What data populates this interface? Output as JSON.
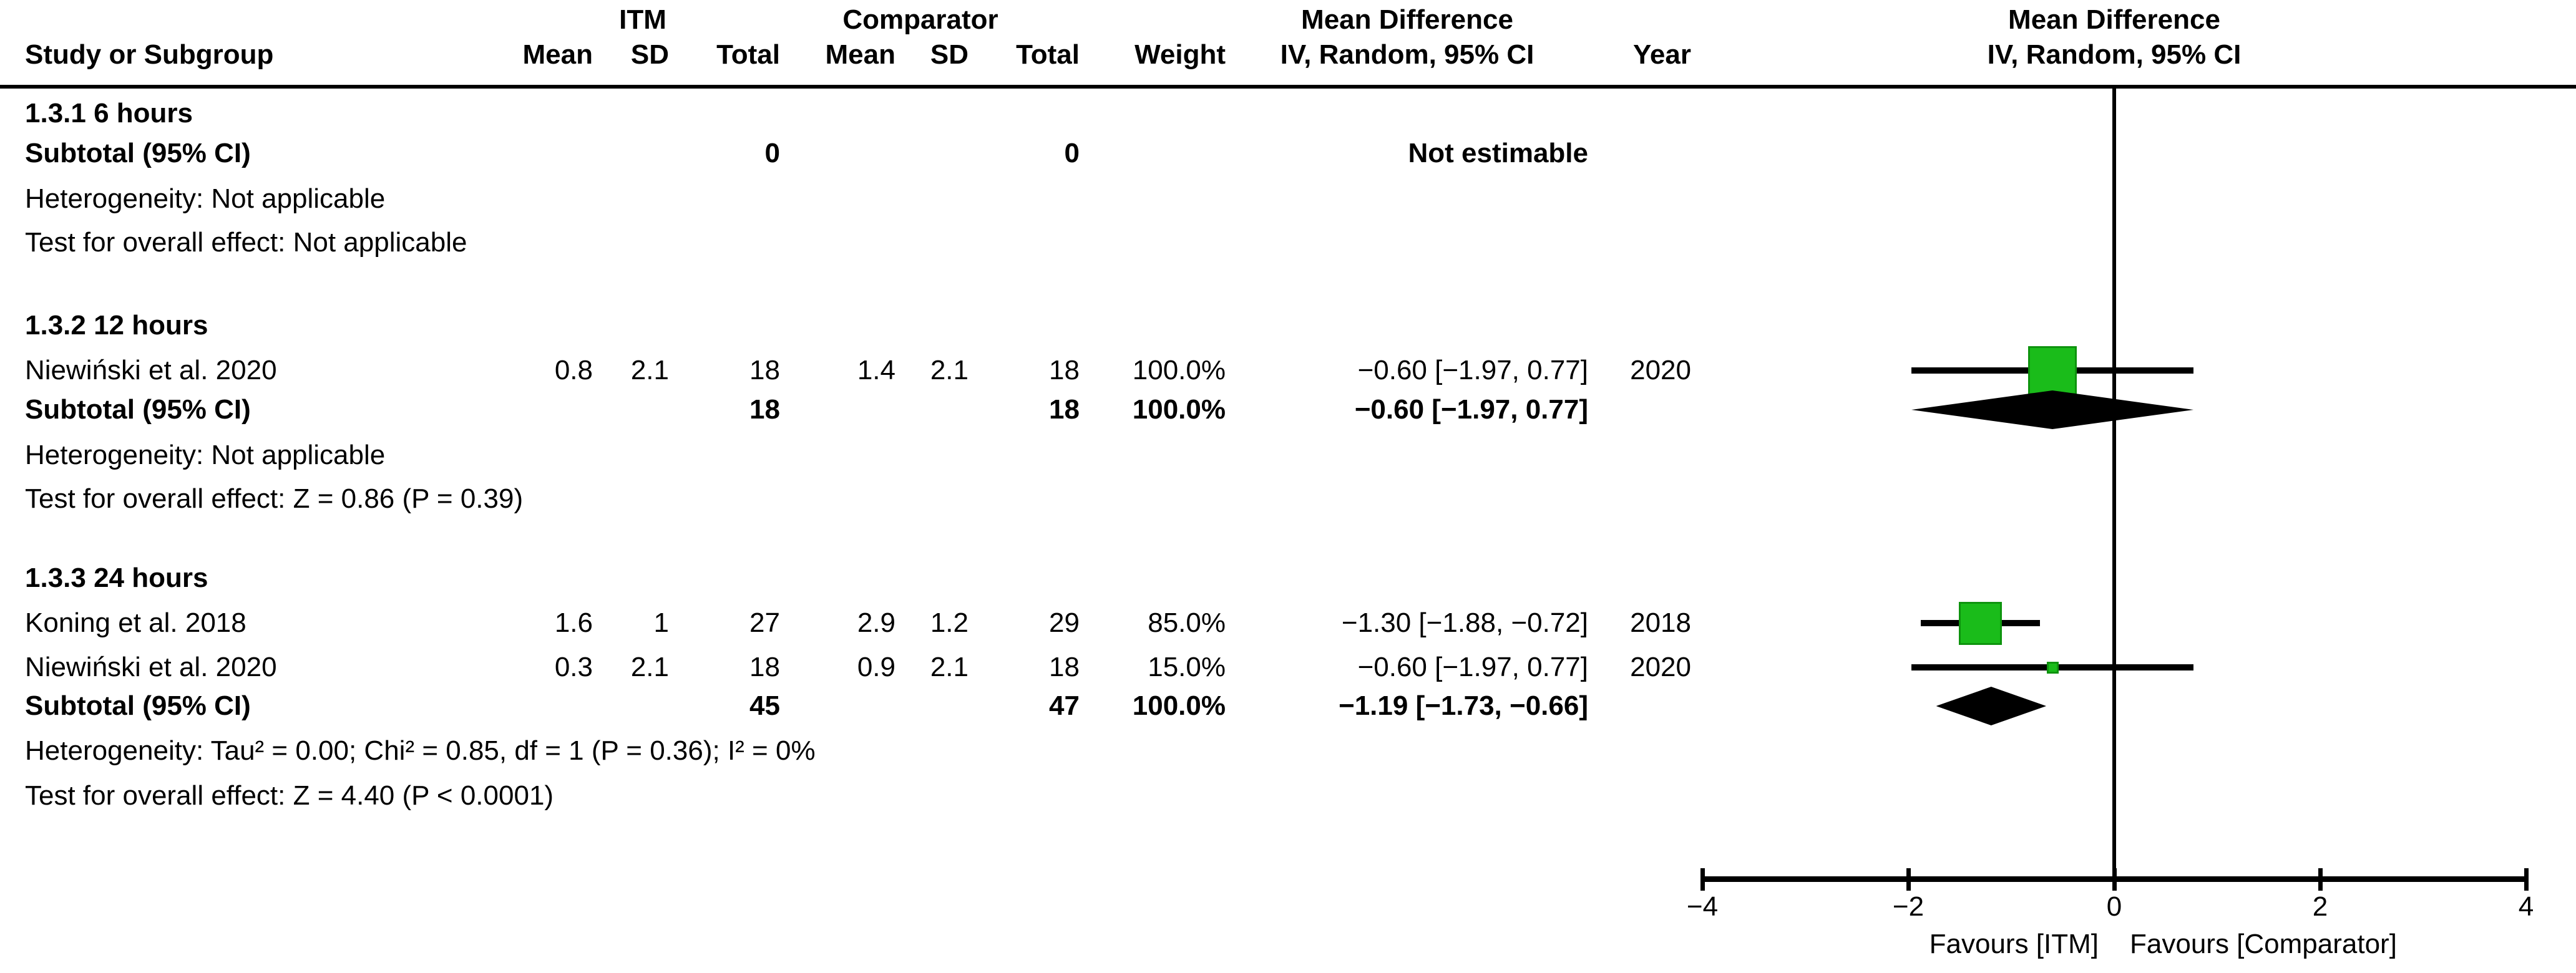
{
  "header": {
    "group_itm": "ITM",
    "group_comparator": "Comparator",
    "group_md_left": "Mean Difference",
    "group_md_right": "Mean Difference",
    "col_study": "Study or Subgroup",
    "col_mean_itm": "Mean",
    "col_sd_itm": "SD",
    "col_total_itm": "Total",
    "col_mean_comp": "Mean",
    "col_sd_comp": "SD",
    "col_total_comp": "Total",
    "col_weight": "Weight",
    "col_ci": "IV, Random, 95% CI",
    "col_year": "Year",
    "plot_sub": "IV, Random, 95% CI"
  },
  "sections": [
    {
      "title": "1.3.1 6 hours",
      "studies": [],
      "subtotal": {
        "label": "Subtotal (95% CI)",
        "itm_total": "0",
        "comp_total": "0",
        "weight": "",
        "ci": "Not estimable"
      },
      "heterogeneity": "Heterogeneity: Not applicable",
      "test": "Test for overall effect: Not applicable"
    },
    {
      "title": "1.3.2 12 hours",
      "studies": [
        {
          "name": "Niewiński et al. 2020",
          "itm_mean": "0.8",
          "itm_sd": "2.1",
          "itm_total": "18",
          "comp_mean": "1.4",
          "comp_sd": "2.1",
          "comp_total": "18",
          "weight": "100.0%",
          "ci": "−0.60 [−1.97, 0.77]",
          "year": "2020"
        }
      ],
      "subtotal": {
        "label": "Subtotal (95% CI)",
        "itm_total": "18",
        "comp_total": "18",
        "weight": "100.0%",
        "ci": "−0.60 [−1.97, 0.77]"
      },
      "heterogeneity": "Heterogeneity: Not applicable",
      "test": "Test for overall effect: Z = 0.86 (P = 0.39)"
    },
    {
      "title": "1.3.3 24 hours",
      "studies": [
        {
          "name": "Koning et al. 2018",
          "itm_mean": "1.6",
          "itm_sd": "1",
          "itm_total": "27",
          "comp_mean": "2.9",
          "comp_sd": "1.2",
          "comp_total": "29",
          "weight": "85.0%",
          "ci": "−1.30 [−1.88, −0.72]",
          "year": "2018"
        },
        {
          "name": "Niewiński et al. 2020",
          "itm_mean": "0.3",
          "itm_sd": "2.1",
          "itm_total": "18",
          "comp_mean": "0.9",
          "comp_sd": "2.1",
          "comp_total": "18",
          "weight": "15.0%",
          "ci": "−0.60 [−1.97, 0.77]",
          "year": "2020"
        }
      ],
      "subtotal": {
        "label": "Subtotal (95% CI)",
        "itm_total": "45",
        "comp_total": "47",
        "weight": "100.0%",
        "ci": "−1.19 [−1.73, −0.66]"
      },
      "heterogeneity": "Heterogeneity: Tau² = 0.00; Chi² = 0.85, df = 1 (P = 0.36); I² = 0%",
      "test": "Test for overall effect: Z = 4.40 (P < 0.0001)"
    }
  ],
  "axis": {
    "tick_labels": [
      "−4",
      "−2",
      "0",
      "2",
      "4"
    ],
    "favours_left": "Favours [ITM]",
    "favours_right": "Favours [Comparator]"
  },
  "colors": {
    "marker_green": "#1abc1a",
    "marker_green_border": "#0e930e",
    "line_black": "#000000"
  },
  "chart_data": {
    "type": "forest",
    "effect_measure": "Mean Difference, IV, Random, 95% CI",
    "title": "Mean Difference",
    "xlim": [
      -4,
      4
    ],
    "x_ticks": [
      -4,
      -2,
      0,
      2,
      4
    ],
    "zero_line": 0,
    "legend_left": "Favours [ITM]",
    "legend_right": "Favours [Comparator]",
    "rows": [
      {
        "section": "1.3.2 12 hours",
        "label": "Niewiński et al. 2020",
        "kind": "study",
        "est": -0.6,
        "lo": -1.97,
        "hi": 0.77,
        "weight_pct": 100.0,
        "year": 2020
      },
      {
        "section": "1.3.2 12 hours",
        "label": "Subtotal (95% CI)",
        "kind": "diamond",
        "est": -0.6,
        "lo": -1.97,
        "hi": 0.77
      },
      {
        "section": "1.3.3 24 hours",
        "label": "Koning et al. 2018",
        "kind": "study",
        "est": -1.3,
        "lo": -1.88,
        "hi": -0.72,
        "weight_pct": 85.0,
        "year": 2018
      },
      {
        "section": "1.3.3 24 hours",
        "label": "Niewiński et al. 2020",
        "kind": "study",
        "est": -0.6,
        "lo": -1.97,
        "hi": 0.77,
        "weight_pct": 15.0,
        "year": 2020
      },
      {
        "section": "1.3.3 24 hours",
        "label": "Subtotal (95% CI)",
        "kind": "diamond",
        "est": -1.19,
        "lo": -1.73,
        "hi": -0.66
      }
    ],
    "subtotals_not_estimable": [
      {
        "section": "1.3.1 6 hours",
        "ci": "Not estimable"
      }
    ]
  }
}
